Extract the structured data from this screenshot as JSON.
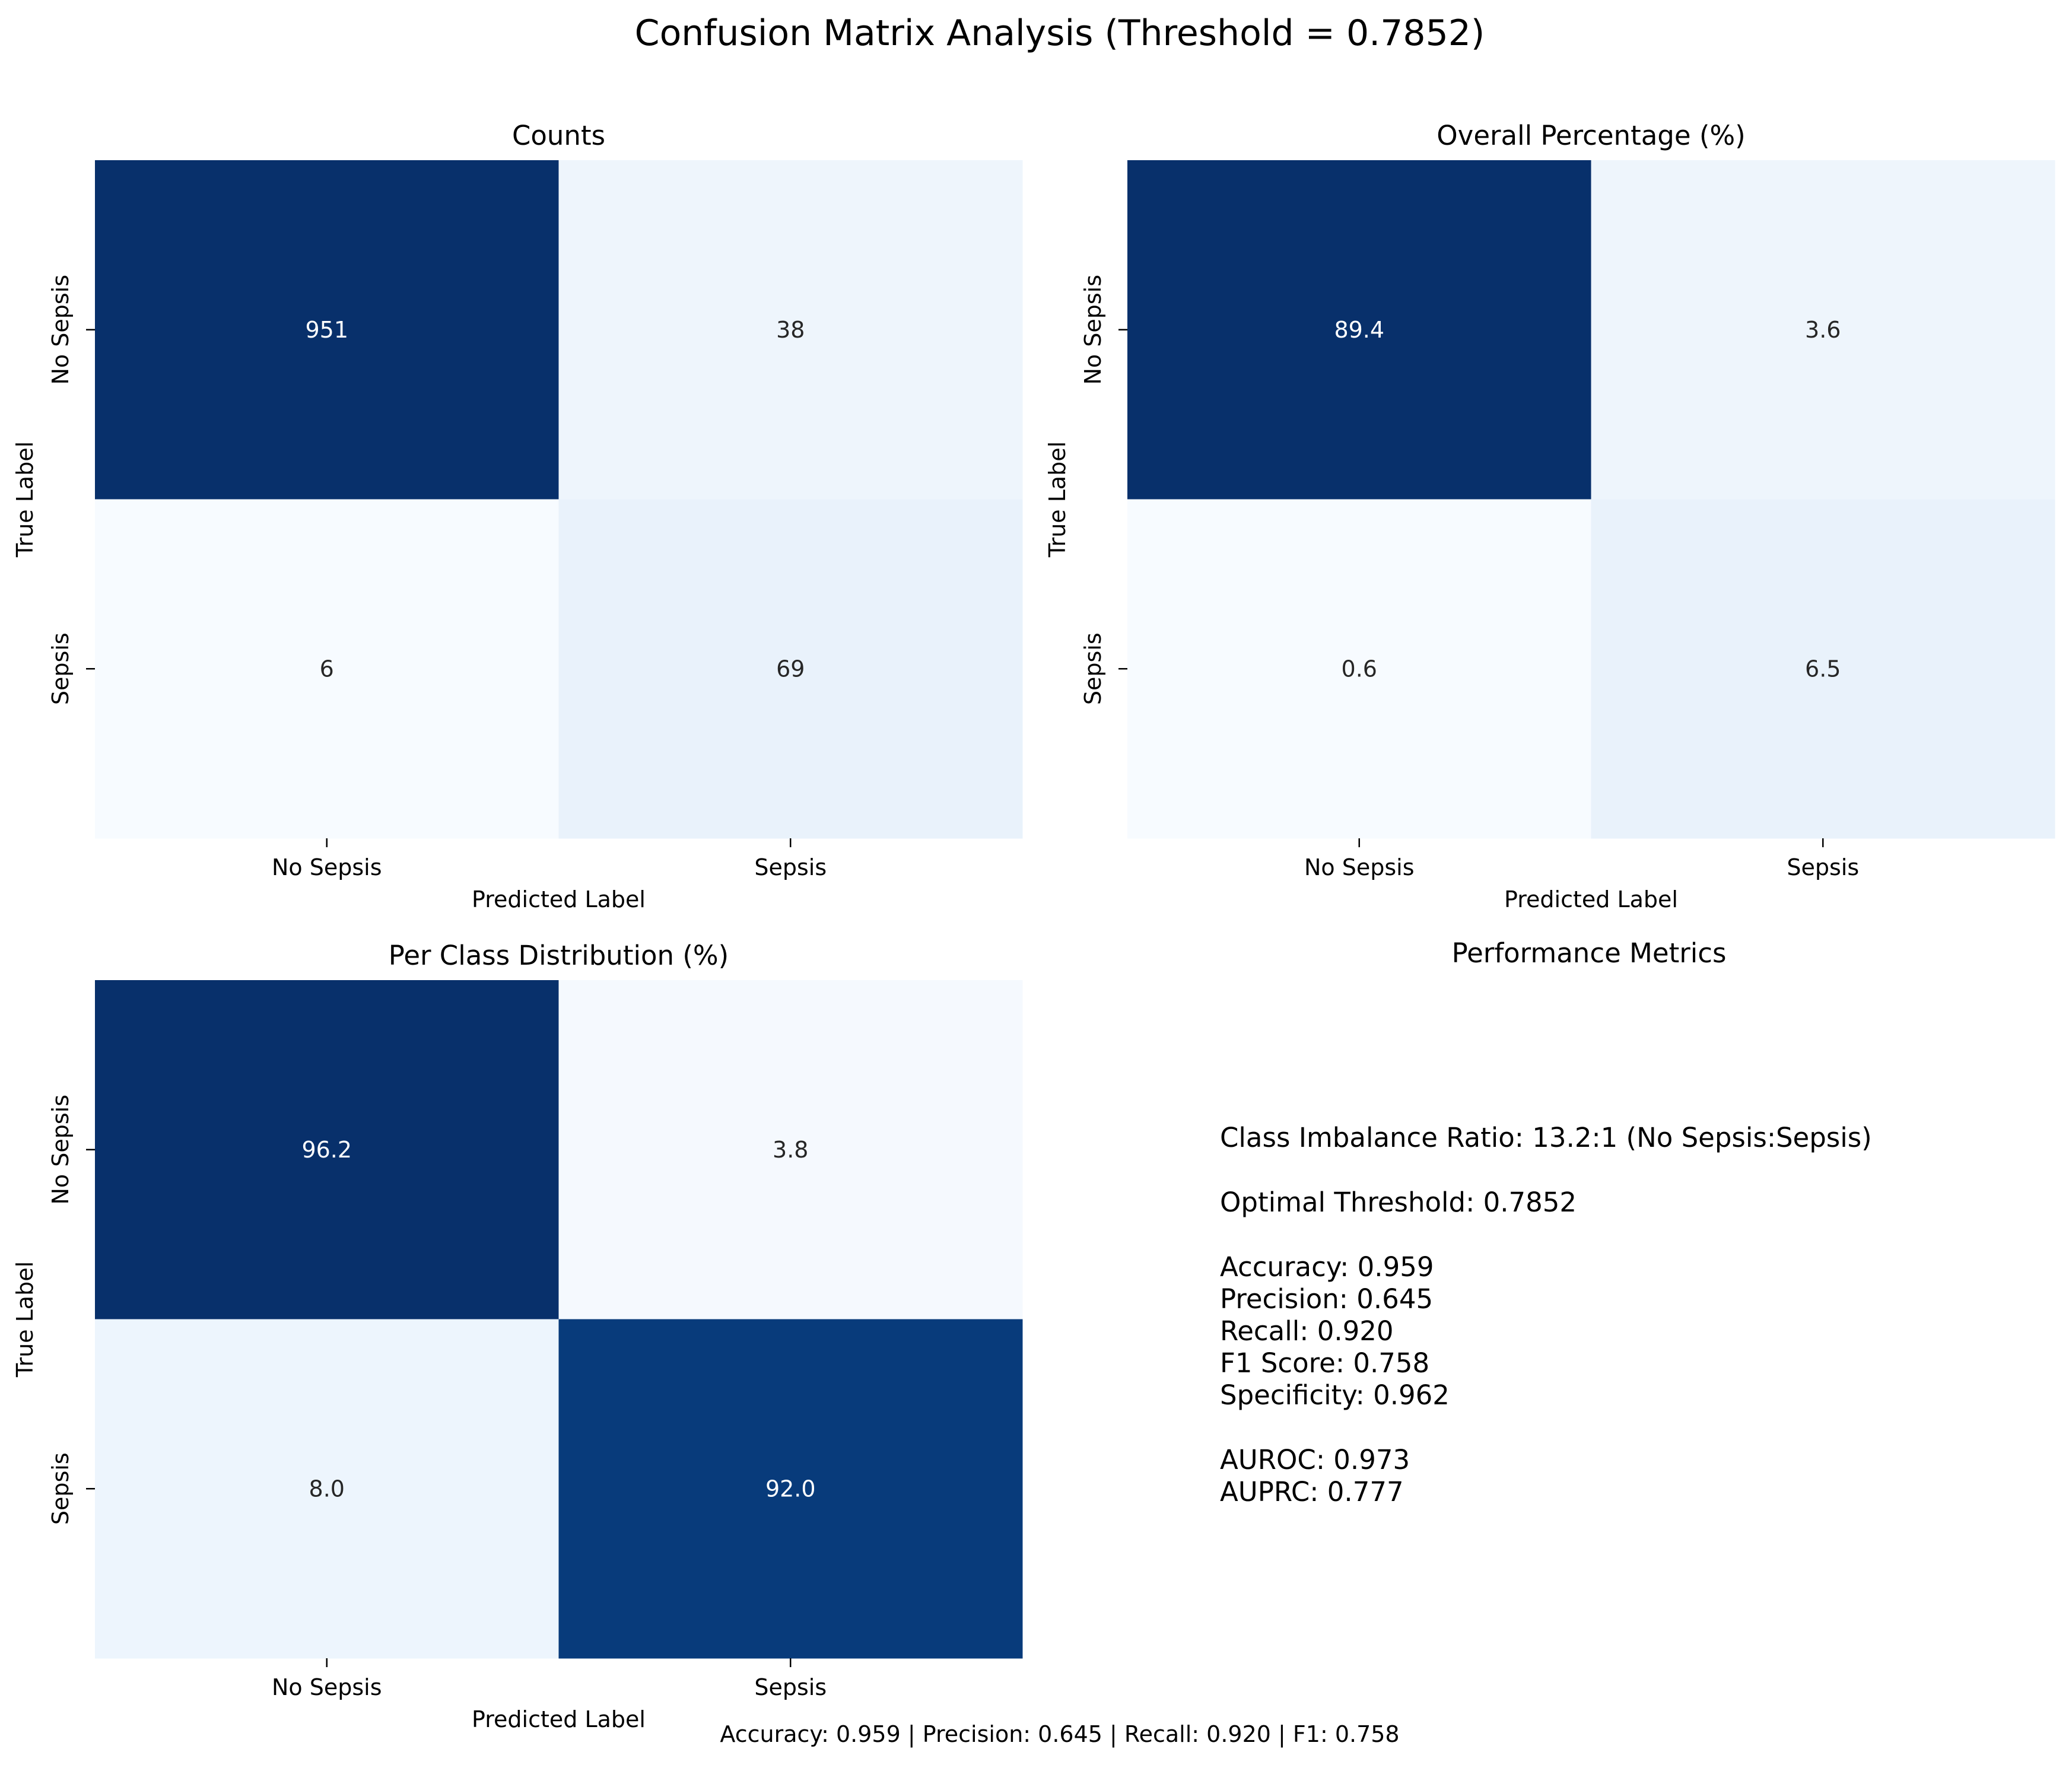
{
  "figure": {
    "title": "Confusion Matrix Analysis (Threshold = 0.7852)",
    "footer": "Accuracy: 0.959 | Precision: 0.645 | Recall: 0.920 | F1: 0.758"
  },
  "chart_data": [
    {
      "type": "heatmap",
      "title": "Counts",
      "xlabel": "Predicted Label",
      "ylabel": "True Label",
      "x_categories": [
        "No Sepsis",
        "Sepsis"
      ],
      "y_categories": [
        "No Sepsis",
        "Sepsis"
      ],
      "values": [
        [
          951,
          38
        ],
        [
          6,
          69
        ]
      ],
      "labels": [
        [
          "951",
          "38"
        ],
        [
          "6",
          "69"
        ]
      ],
      "colors": [
        [
          "#08306b",
          "#eef5fc"
        ],
        [
          "#f7fbff",
          "#e9f2fb"
        ]
      ],
      "text_colors": [
        [
          "#ffffff",
          "#262626"
        ],
        [
          "#262626",
          "#262626"
        ]
      ],
      "colormap": "Blues",
      "colorbar": false
    },
    {
      "type": "heatmap",
      "title": "Overall Percentage (%)",
      "xlabel": "Predicted Label",
      "ylabel": "True Label",
      "x_categories": [
        "No Sepsis",
        "Sepsis"
      ],
      "y_categories": [
        "No Sepsis",
        "Sepsis"
      ],
      "values": [
        [
          89.4,
          3.6
        ],
        [
          0.6,
          6.5
        ]
      ],
      "labels": [
        [
          "89.4",
          "3.6"
        ],
        [
          "0.6",
          "6.5"
        ]
      ],
      "colors": [
        [
          "#08306b",
          "#eef5fc"
        ],
        [
          "#f7fbff",
          "#e9f2fb"
        ]
      ],
      "text_colors": [
        [
          "#ffffff",
          "#262626"
        ],
        [
          "#262626",
          "#262626"
        ]
      ],
      "colormap": "Blues",
      "colorbar": false
    },
    {
      "type": "heatmap",
      "title": "Per Class Distribution (%)",
      "xlabel": "Predicted Label",
      "ylabel": "True Label",
      "x_categories": [
        "No Sepsis",
        "Sepsis"
      ],
      "y_categories": [
        "No Sepsis",
        "Sepsis"
      ],
      "values": [
        [
          96.2,
          3.8
        ],
        [
          8.0,
          92.0
        ]
      ],
      "labels": [
        [
          "96.2",
          "3.8"
        ],
        [
          "8.0",
          "92.0"
        ]
      ],
      "colors": [
        [
          "#08306b",
          "#f5f9fe"
        ],
        [
          "#edf5fd",
          "#083b7b"
        ]
      ],
      "text_colors": [
        [
          "#ffffff",
          "#262626"
        ],
        [
          "#262626",
          "#ffffff"
        ]
      ],
      "colormap": "Blues",
      "colorbar": false
    }
  ],
  "metrics_panel": {
    "title": "Performance Metrics",
    "lines": [
      "Class Imbalance Ratio: 13.2:1 (No Sepsis:Sepsis)",
      "Optimal Threshold: 0.7852",
      "Accuracy: 0.959",
      "Precision: 0.645",
      "Recall: 0.920",
      "F1 Score: 0.758",
      "Specificity: 0.962",
      "AUROC: 0.973",
      "AUPRC: 0.777"
    ]
  }
}
